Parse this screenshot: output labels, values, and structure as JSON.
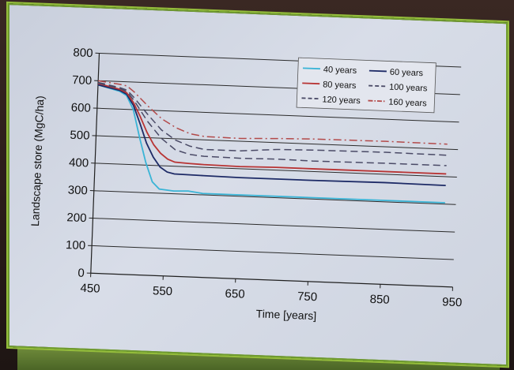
{
  "chart_data": {
    "type": "line",
    "title": "",
    "xlabel": "Time [years]",
    "ylabel": "Landscape store (MgC/ha)",
    "xlim": [
      450,
      950
    ],
    "ylim": [
      0,
      800
    ],
    "xticks": [
      "450",
      "550",
      "650",
      "750",
      "850",
      "950"
    ],
    "yticks": [
      "0",
      "100",
      "200",
      "300",
      "400",
      "500",
      "600",
      "700",
      "800"
    ],
    "grid": "horizontal",
    "legend_position": "top-right",
    "series": [
      {
        "name": "40 years",
        "color": "#3ab4d6",
        "dash": "solid",
        "x": [
          450,
          480,
          490,
          500,
          510,
          520,
          530,
          540,
          560,
          580,
          600,
          650,
          750,
          850,
          935
        ],
        "y": [
          685,
          665,
          650,
          600,
          500,
          410,
          340,
          315,
          310,
          312,
          305,
          305,
          305,
          305,
          305
        ]
      },
      {
        "name": "60 years",
        "color": "#1d2a66",
        "dash": "solid",
        "x": [
          450,
          480,
          490,
          500,
          510,
          520,
          530,
          540,
          550,
          560,
          600,
          650,
          750,
          850,
          935
        ],
        "y": [
          685,
          668,
          655,
          615,
          550,
          480,
          430,
          395,
          378,
          372,
          370,
          368,
          368,
          370,
          368
        ]
      },
      {
        "name": "80 years",
        "color": "#b83434",
        "dash": "solid",
        "x": [
          450,
          480,
          490,
          500,
          510,
          520,
          530,
          540,
          550,
          560,
          580,
          600,
          650,
          700,
          750,
          850,
          935
        ],
        "y": [
          690,
          672,
          660,
          625,
          575,
          520,
          475,
          445,
          425,
          415,
          412,
          410,
          408,
          410,
          410,
          410,
          410
        ]
      },
      {
        "name": "100 years",
        "color": "#4a4a66",
        "dash": "dash",
        "x": [
          450,
          480,
          490,
          500,
          520,
          540,
          560,
          580,
          600,
          650,
          700,
          750,
          850,
          935
        ],
        "y": [
          692,
          675,
          665,
          635,
          560,
          500,
          460,
          445,
          440,
          438,
          440,
          438,
          440,
          440
        ]
      },
      {
        "name": "120 years",
        "color": "#4a4a66",
        "dash": "dash",
        "x": [
          450,
          480,
          490,
          500,
          520,
          540,
          560,
          580,
          600,
          650,
          700,
          750,
          850,
          935
        ],
        "y": [
          694,
          678,
          670,
          645,
          585,
          530,
          495,
          475,
          465,
          465,
          475,
          478,
          480,
          478
        ]
      },
      {
        "name": "160 years",
        "color": "#b34a4a",
        "dash": "dashdot",
        "x": [
          450,
          480,
          490,
          500,
          520,
          540,
          560,
          580,
          600,
          650,
          700,
          750,
          850,
          935
        ],
        "y": [
          700,
          690,
          685,
          665,
          615,
          570,
          540,
          520,
          512,
          510,
          515,
          518,
          520,
          518
        ]
      }
    ]
  }
}
